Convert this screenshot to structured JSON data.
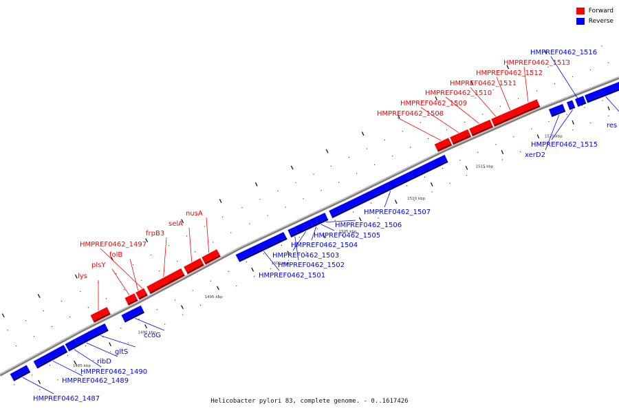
{
  "legend": {
    "forward_label": "Forward",
    "reverse_label": "Reverse",
    "forward_color": "#ff0000",
    "reverse_color": "#0000ff"
  },
  "caption": "Helicobacter pylori 83, complete genome. - 0..1617426",
  "scale_labels": [
    "1485 kbp",
    "1490 kbp",
    "1495 kbp",
    "1500 kbp",
    "1505 kbp",
    "1510 kbp",
    "1515 kbp",
    "1520 kbp"
  ],
  "genes": [
    {
      "name": "HMPREF0462_1487",
      "strand": "reverse"
    },
    {
      "name": "HMPREF0462_1489",
      "strand": "reverse"
    },
    {
      "name": "HMPREF0462_1490",
      "strand": "reverse"
    },
    {
      "name": "ribD",
      "strand": "reverse"
    },
    {
      "name": "gltS",
      "strand": "reverse"
    },
    {
      "name": "lys",
      "strand": "forward"
    },
    {
      "name": "ccoG",
      "strand": "reverse"
    },
    {
      "name": "plsY",
      "strand": "forward"
    },
    {
      "name": "folB",
      "strand": "forward"
    },
    {
      "name": "HMPREF0462_1497",
      "strand": "forward"
    },
    {
      "name": "frpB3",
      "strand": "forward"
    },
    {
      "name": "selA",
      "strand": "forward"
    },
    {
      "name": "nusA",
      "strand": "forward"
    },
    {
      "name": "HMPREF0462_1501",
      "strand": "reverse"
    },
    {
      "name": "HMPREF0462_1502",
      "strand": "reverse"
    },
    {
      "name": "HMPREF0462_1503",
      "strand": "reverse"
    },
    {
      "name": "HMPREF0462_1504",
      "strand": "reverse"
    },
    {
      "name": "HMPREF0462_1505",
      "strand": "reverse"
    },
    {
      "name": "HMPREF0462_1506",
      "strand": "reverse"
    },
    {
      "name": "HMPREF0462_1507",
      "strand": "reverse"
    },
    {
      "name": "HMPREF0462_1508",
      "strand": "forward"
    },
    {
      "name": "HMPREF0462_1509",
      "strand": "forward"
    },
    {
      "name": "HMPREF0462_1510",
      "strand": "forward"
    },
    {
      "name": "HMPREF0462_1511",
      "strand": "forward"
    },
    {
      "name": "HMPREF0462_1512",
      "strand": "forward"
    },
    {
      "name": "HMPREF0462_1513",
      "strand": "forward"
    },
    {
      "name": "xerD2",
      "strand": "reverse"
    },
    {
      "name": "HMPREF0462_1515",
      "strand": "reverse"
    },
    {
      "name": "HMPREF0462_1516",
      "strand": "reverse"
    },
    {
      "name": "res",
      "strand": "reverse"
    }
  ]
}
